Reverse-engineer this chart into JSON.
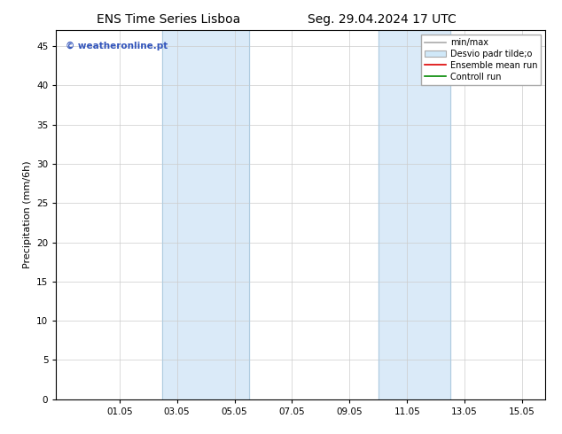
{
  "title_left": "ENS Time Series Lisboa",
  "title_right": "Seg. 29.04.2024 17 UTC",
  "ylabel": "Precipitation (mm/6h)",
  "ylim": [
    0,
    47
  ],
  "yticks": [
    0,
    5,
    10,
    15,
    20,
    25,
    30,
    35,
    40,
    45
  ],
  "xtick_labels": [
    "01.05",
    "03.05",
    "05.05",
    "07.05",
    "09.05",
    "11.05",
    "13.05",
    "15.05"
  ],
  "xtick_positions": [
    2.0,
    4.0,
    6.0,
    8.0,
    10.0,
    12.0,
    14.0,
    16.0
  ],
  "xlim": [
    -0.2,
    16.8
  ],
  "shade_bands": [
    {
      "xmin": 3.5,
      "xmax": 6.5
    },
    {
      "xmin": 11.0,
      "xmax": 13.5
    }
  ],
  "shade_color": "#daeaf8",
  "shade_edge_color": "#b0cce0",
  "background_color": "#ffffff",
  "plot_bg_color": "#ffffff",
  "watermark_text": "© weatheronline.pt",
  "watermark_color": "#3355bb",
  "legend_entries": [
    {
      "label": "min/max",
      "color": "#aaaaaa",
      "lw": 1.2,
      "type": "line"
    },
    {
      "label": "Desvio padr tilde;o",
      "color": "#d0e8f8",
      "edge_color": "#aaaaaa",
      "type": "patch"
    },
    {
      "label": "Ensemble mean run",
      "color": "#dd0000",
      "lw": 1.2,
      "type": "line"
    },
    {
      "label": "Controll run",
      "color": "#008800",
      "lw": 1.2,
      "type": "line"
    }
  ],
  "grid_color": "#cccccc",
  "axis_color": "#000000",
  "title_fontsize": 10,
  "tick_fontsize": 7.5,
  "ylabel_fontsize": 8,
  "legend_fontsize": 7
}
